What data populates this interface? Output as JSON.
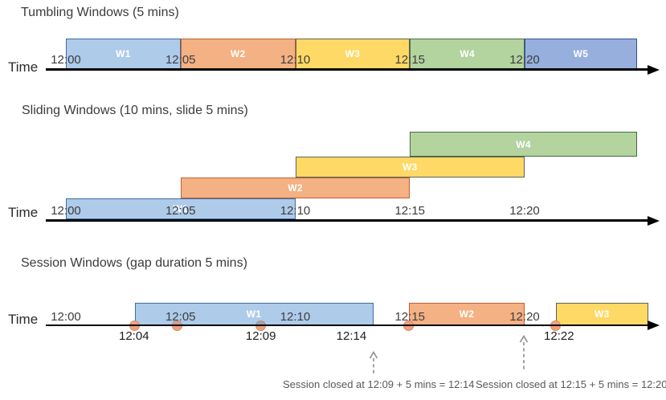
{
  "figure": {
    "axis_label": "Time",
    "tick_labels": [
      {
        "text": "12:00",
        "min": 0
      },
      {
        "text": "12:05",
        "min": 5
      },
      {
        "text": "12:10",
        "min": 10
      },
      {
        "text": "12:15",
        "min": 15
      },
      {
        "text": "12:20",
        "min": 20
      }
    ]
  },
  "colors": {
    "blue": {
      "fill": "#AECBEA",
      "border": "#3E6DA3"
    },
    "blue2": {
      "fill": "#97AFDC",
      "border": "#2F5597"
    },
    "orange": {
      "fill": "#F4B183",
      "border": "#C06030"
    },
    "yellow": {
      "fill": "#FFD966",
      "border": "#5C6455"
    },
    "green": {
      "fill": "#B3D39F",
      "border": "#4C6A41"
    },
    "dot_salmon": "#F2A17C",
    "dot_gray": "#9EA3B1",
    "dot_muted": "#CFA096",
    "axis": "#000000",
    "annotation_arrow": "#8C8C8C"
  },
  "diagrams": [
    {
      "id": "tumbling",
      "title": "Tumbling Windows (5 mins)",
      "windows": [
        {
          "label": "W1",
          "start_min": 0,
          "end_min": 5,
          "row": 0,
          "color": "blue"
        },
        {
          "label": "W2",
          "start_min": 5,
          "end_min": 10,
          "row": 0,
          "color": "orange"
        },
        {
          "label": "W3",
          "start_min": 10,
          "end_min": 15,
          "row": 0,
          "color": "yellow"
        },
        {
          "label": "W4",
          "start_min": 15,
          "end_min": 20,
          "row": 0,
          "color": "green"
        },
        {
          "label": "W5",
          "start_min": 20,
          "end_min": 24.9,
          "row": 0,
          "color": "blue2"
        }
      ]
    },
    {
      "id": "sliding",
      "title": "Sliding Windows (10 mins, slide 5 mins)",
      "windows": [
        {
          "label": "W1",
          "start_min": 0,
          "end_min": 10,
          "row": 0,
          "color": "blue"
        },
        {
          "label": "W2",
          "start_min": 5,
          "end_min": 15,
          "row": 1,
          "color": "orange"
        },
        {
          "label": "W3",
          "start_min": 10,
          "end_min": 20,
          "row": 2,
          "color": "yellow"
        },
        {
          "label": "W4",
          "start_min": 15,
          "end_min": 24.9,
          "row": 3,
          "color": "green"
        }
      ]
    },
    {
      "id": "session",
      "title": "Session Windows (gap duration 5 mins)",
      "windows": [
        {
          "label": "W1",
          "start_min": 3.0,
          "end_min": 13.4,
          "row": 0,
          "color": "blue"
        },
        {
          "label": "W2",
          "start_min": 14.95,
          "end_min": 20.0,
          "row": 0,
          "color": "orange"
        },
        {
          "label": "W3",
          "start_min": 21.35,
          "end_min": 25.4,
          "row": 0,
          "color": "yellow"
        }
      ],
      "events": [
        {
          "min": 3.0,
          "top": "dot_salmon",
          "bottom": "dot_salmon"
        },
        {
          "min": 4.85,
          "top": "dot_muted",
          "bottom": "dot_salmon"
        },
        {
          "min": 8.5,
          "top": "dot_gray",
          "bottom": "dot_salmon"
        },
        {
          "min": 14.95,
          "top": "dot_salmon",
          "bottom": "dot_salmon"
        },
        {
          "min": 21.35,
          "top": "dot_salmon",
          "bottom": "dot_salmon"
        }
      ],
      "event_labels": [
        {
          "text": "12:04",
          "min": 2.97
        },
        {
          "text": "12:09",
          "min": 8.5
        },
        {
          "text": "12:14",
          "min": 12.45
        },
        {
          "text": "12:22",
          "min": 21.5
        }
      ],
      "annotations": [
        {
          "text": "Session closed at 12:09 + 5 mins = 12:14",
          "arrow_min": 13.4
        },
        {
          "text": "Session closed at 12:15 + 5 mins = 12:20",
          "arrow_min": 19.95
        }
      ]
    }
  ]
}
